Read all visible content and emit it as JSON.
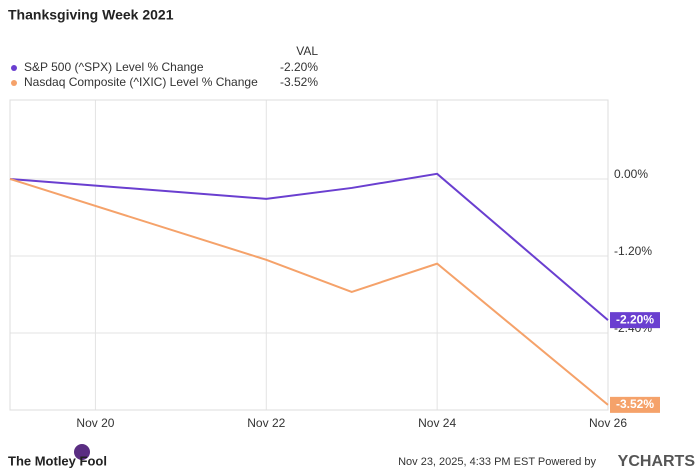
{
  "chart_data": {
    "type": "line",
    "title": "Thanksgiving Week 2021",
    "legend_value_header": "VAL",
    "x": [
      19,
      22,
      23,
      24,
      26
    ],
    "xlim": [
      19,
      26
    ],
    "xticks": [
      {
        "value": 20,
        "label": "Nov 20"
      },
      {
        "value": 22,
        "label": "Nov 22"
      },
      {
        "value": 24,
        "label": "Nov 24"
      },
      {
        "value": 26,
        "label": "Nov 26"
      }
    ],
    "ylim": [
      -3.6,
      1.23
    ],
    "yticks": [
      {
        "value": 0,
        "label": "0.00%"
      },
      {
        "value": -1.2,
        "label": "-1.20%"
      },
      {
        "value": -2.4,
        "label": "-2.40%"
      }
    ],
    "grid": true,
    "series": [
      {
        "name": "S&P 500 (^SPX) Level % Change",
        "color": "#6a3fd0",
        "values": [
          0,
          -0.31,
          -0.14,
          0.08,
          -2.2
        ],
        "value_labels": [
          null,
          null,
          null,
          null,
          "-2.20%"
        ]
      },
      {
        "name": "Nasdaq Composite (^IXIC) Level % Change",
        "color": "#f5a26a",
        "values": [
          0,
          -1.26,
          -1.76,
          -1.32,
          -3.52
        ],
        "value_labels": [
          null,
          null,
          null,
          null,
          "-3.52%"
        ]
      }
    ],
    "footer_brand": "The Motley Fool",
    "footer_note": "Nov 23, 2025, 4:33 PM EST Powered by",
    "footer_logo": "YCHARTS"
  }
}
